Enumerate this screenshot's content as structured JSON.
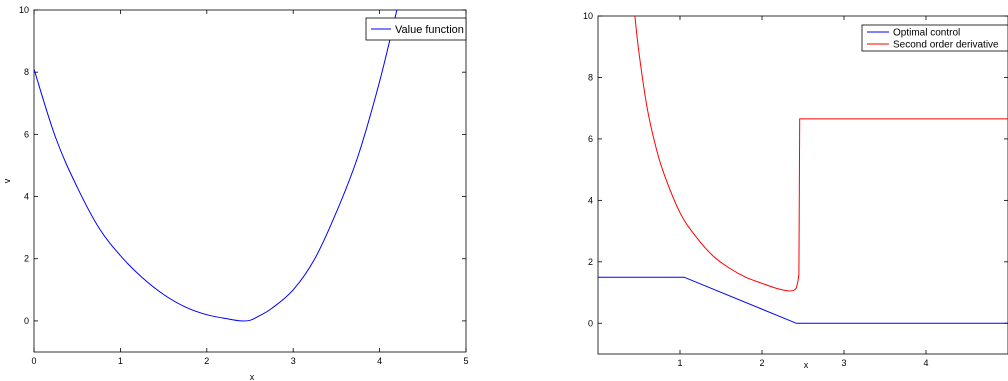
{
  "chart_data": [
    {
      "type": "line",
      "xlabel": "x",
      "ylabel": "v",
      "xlim": [
        0,
        5
      ],
      "ylim": [
        -1,
        10
      ],
      "xticks": [
        "0",
        "1",
        "2",
        "3",
        "4",
        "5"
      ],
      "yticks": [
        "0",
        "2",
        "4",
        "6",
        "8",
        "10"
      ],
      "grid": false,
      "legend_position": "top-right",
      "series": [
        {
          "name": "Value function",
          "color": "#0000ff",
          "x": [
            0,
            0.25,
            0.5,
            0.75,
            1.0,
            1.25,
            1.5,
            1.75,
            2.0,
            2.25,
            2.4,
            2.5,
            2.6,
            2.75,
            3.0,
            3.25,
            3.5,
            3.75,
            4.0,
            4.2
          ],
          "y": [
            8.1,
            5.9,
            4.3,
            3.0,
            2.1,
            1.4,
            0.85,
            0.45,
            0.2,
            0.06,
            0.0,
            0.02,
            0.15,
            0.4,
            1.0,
            2.0,
            3.5,
            5.3,
            7.7,
            10.0
          ]
        }
      ]
    },
    {
      "type": "line",
      "xlabel": "x",
      "ylabel": "",
      "xlim": [
        0,
        5
      ],
      "ylim": [
        -1,
        10
      ],
      "xticks": [
        "1",
        "2",
        "3",
        "4"
      ],
      "yticks": [
        "0",
        "2",
        "4",
        "6",
        "8",
        "10"
      ],
      "grid": false,
      "legend_position": "top-right",
      "series": [
        {
          "name": "Optimal control",
          "color": "#0000ff",
          "x": [
            0,
            1.05,
            2.42,
            5.0
          ],
          "y": [
            1.5,
            1.5,
            0.0,
            0.0
          ]
        },
        {
          "name": "Second order derivative",
          "color": "#ff0000",
          "x": [
            0.45,
            0.5,
            0.6,
            0.7,
            0.8,
            1.0,
            1.2,
            1.4,
            1.6,
            1.8,
            2.0,
            2.2,
            2.35,
            2.42,
            2.44,
            2.45,
            2.46,
            2.47,
            5.0
          ],
          "y": [
            10.0,
            8.8,
            7.0,
            5.8,
            4.9,
            3.6,
            2.8,
            2.2,
            1.8,
            1.5,
            1.3,
            1.12,
            1.05,
            1.15,
            1.4,
            1.6,
            6.65,
            6.65,
            6.65
          ]
        }
      ]
    }
  ]
}
